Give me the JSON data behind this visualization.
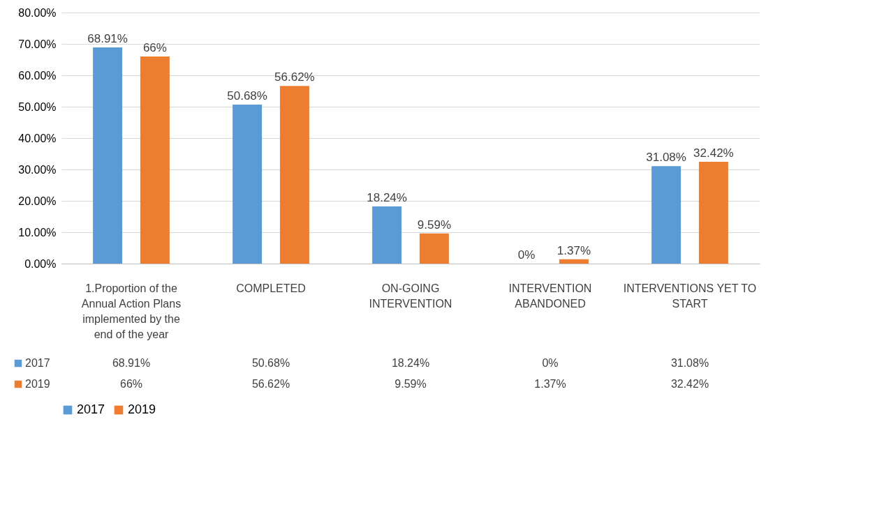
{
  "chart_data": {
    "type": "bar",
    "categories": [
      "1.Proportion of the Annual Action Plans implemented by the end of the year",
      "COMPLETED",
      "ON-GOING INTERVENTION",
      "INTERVENTION ABANDONED",
      "INTERVENTIONS YET TO START"
    ],
    "series": [
      {
        "name": "2017",
        "color": "#5b9bd5",
        "values": [
          68.91,
          50.68,
          18.24,
          0,
          31.08
        ],
        "value_labels": [
          "68.91%",
          "50.68%",
          "18.24%",
          "0%",
          "31.08%"
        ]
      },
      {
        "name": "2019",
        "color": "#ed7d31",
        "values": [
          66,
          56.62,
          9.59,
          1.37,
          32.42
        ],
        "value_labels": [
          "66%",
          "56.62%",
          "9.59%",
          "1.37%",
          "32.42%"
        ]
      }
    ],
    "ylim": [
      0,
      80
    ],
    "yticks": [
      {
        "value": 0,
        "label": "0.00%"
      },
      {
        "value": 10,
        "label": "10.00%"
      },
      {
        "value": 20,
        "label": "20.00%"
      },
      {
        "value": 30,
        "label": "30.00%"
      },
      {
        "value": 40,
        "label": "40.00%"
      },
      {
        "value": 50,
        "label": "50.00%"
      },
      {
        "value": 60,
        "label": "60.00%"
      },
      {
        "value": 70,
        "label": "70.00%"
      },
      {
        "value": 80,
        "label": "80.00%"
      }
    ],
    "grid": "y",
    "legend": "bottom"
  }
}
